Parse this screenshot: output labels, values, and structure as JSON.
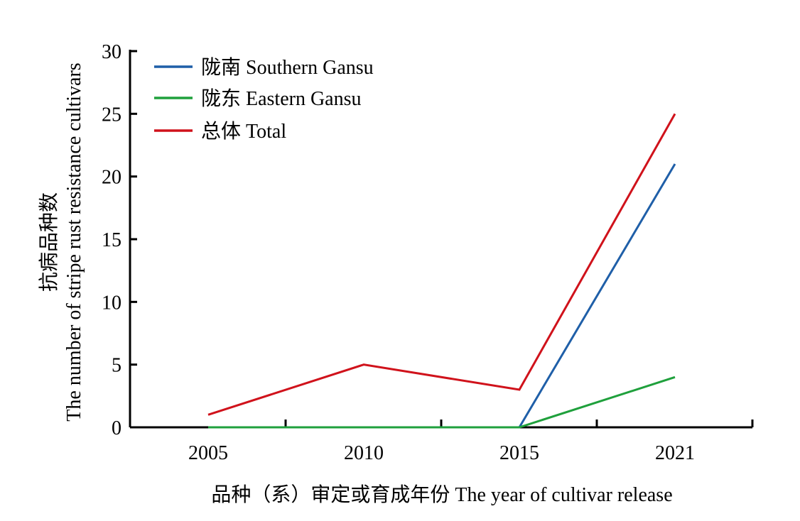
{
  "chart_data": {
    "type": "line",
    "categories": [
      "2005",
      "2010",
      "2015",
      "2021"
    ],
    "series": [
      {
        "name": "陇南 Southern Gansu",
        "color": "#1f5fa8",
        "values": [
          0,
          0,
          0,
          21
        ]
      },
      {
        "name": "陇东 Eastern Gansu",
        "color": "#1fa03c",
        "values": [
          0,
          0,
          0,
          4
        ]
      },
      {
        "name": "总体 Total",
        "color": "#d0121b",
        "values": [
          1,
          5,
          3,
          25
        ]
      }
    ],
    "ylim": [
      0,
      30
    ],
    "yticks": [
      "0",
      "5",
      "10",
      "15",
      "20",
      "25",
      "30"
    ],
    "xlabel": "品种（系）审定或育成年份 The year of cultivar release",
    "ylabel_line1": "抗病品种数",
    "ylabel_line2": "The number of stripe rust resistance cultivars",
    "legend_position": "top-left",
    "grid": false
  }
}
